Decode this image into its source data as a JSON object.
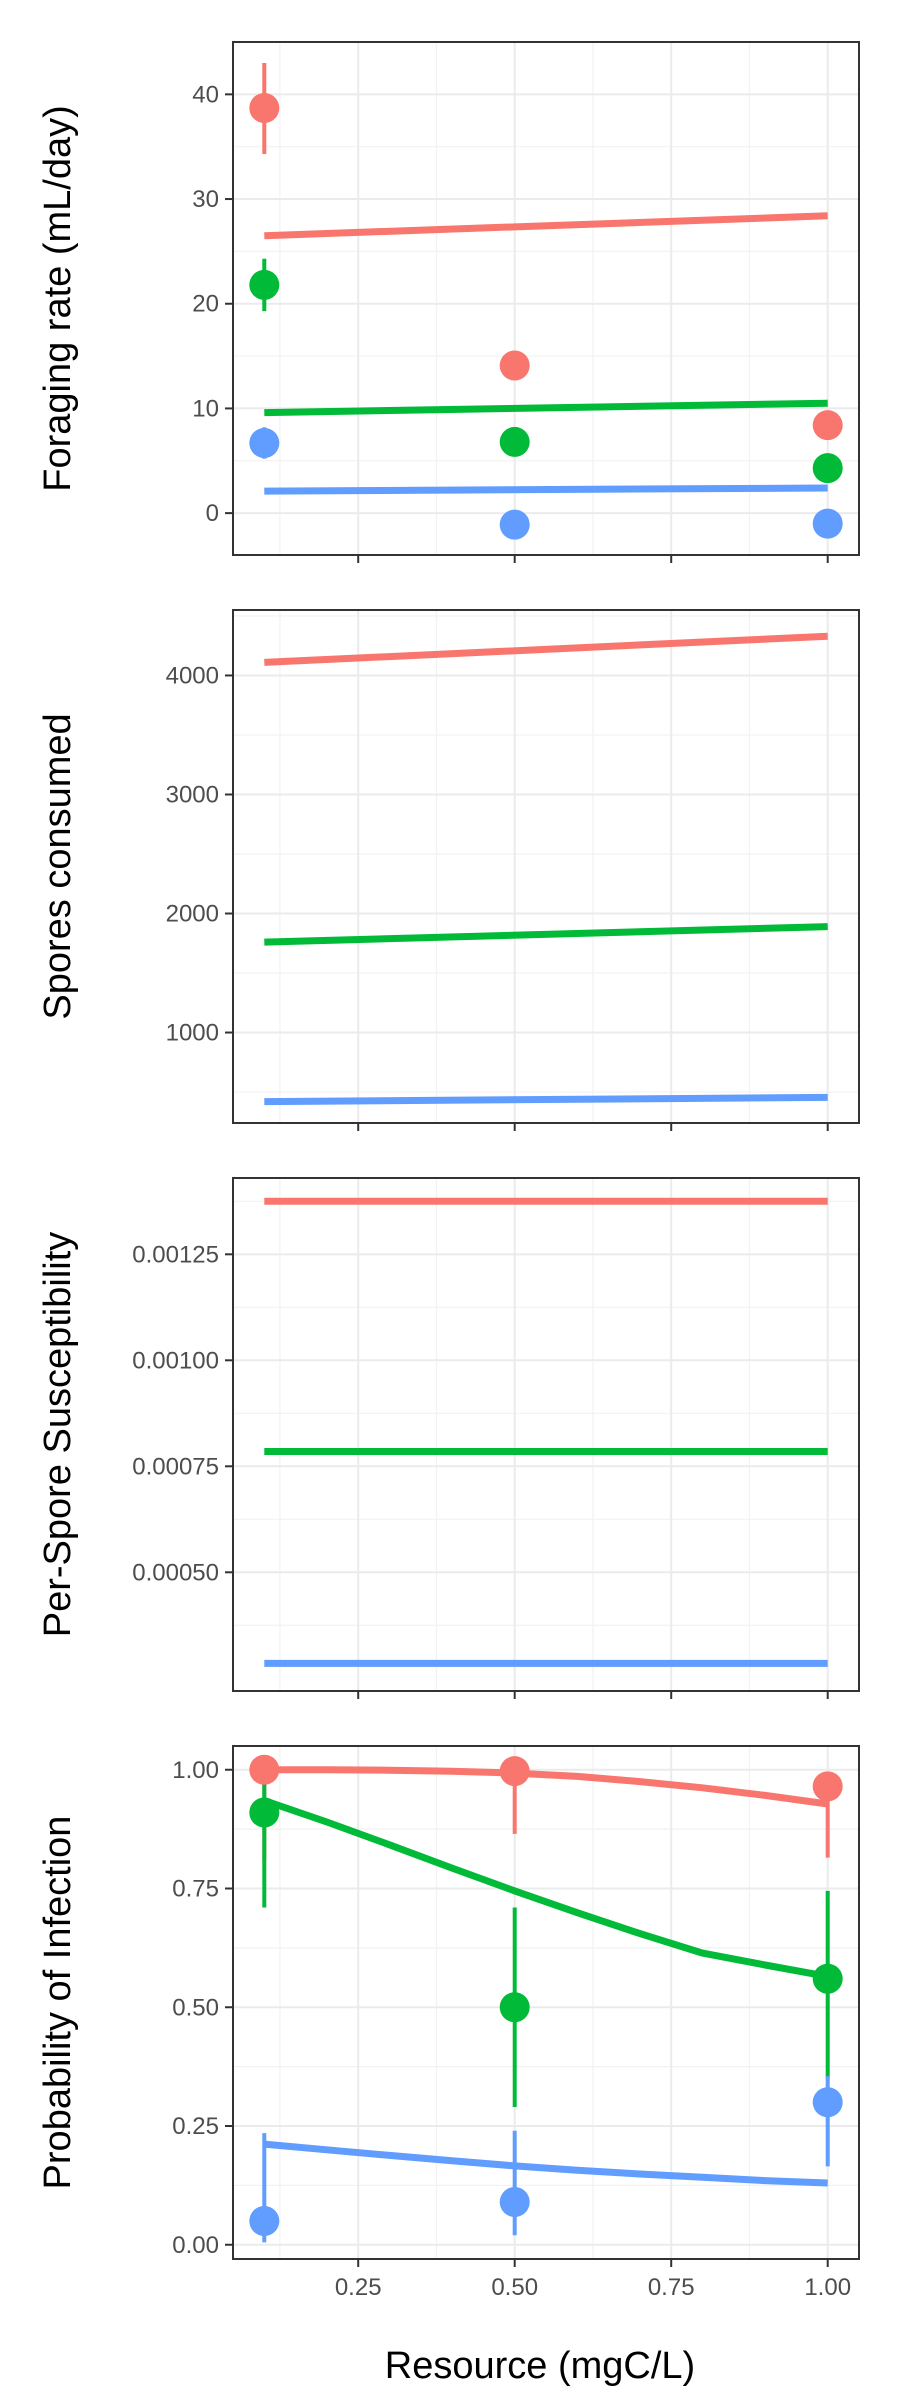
{
  "colors": {
    "red": "#F8766D",
    "green": "#00BA38",
    "blue": "#619CFF"
  },
  "xaxis": {
    "label": "Resource (mgC/L)",
    "ticks": [
      0.25,
      0.5,
      0.75,
      1.0
    ],
    "tick_labels": [
      "0.25",
      "0.50",
      "0.75",
      "1.00"
    ],
    "range": [
      0.05,
      1.05
    ]
  },
  "chart_data": [
    {
      "type": "line",
      "ylabel": "Foraging rate (mL/day)",
      "ylim": [
        -4,
        45
      ],
      "yticks": [
        0,
        10,
        20,
        30,
        40
      ],
      "ytick_labels": [
        "0",
        "10",
        "20",
        "30",
        "40"
      ],
      "grid": true,
      "series": [
        {
          "color": "red",
          "line": {
            "x": [
              0.1,
              1.0
            ],
            "y": [
              26.5,
              28.4
            ]
          },
          "points": [
            {
              "x": 0.1,
              "y": 38.7,
              "lo": 34.3,
              "hi": 43.0
            },
            {
              "x": 0.5,
              "y": 14.1
            },
            {
              "x": 1.0,
              "y": 8.4
            }
          ]
        },
        {
          "color": "green",
          "line": {
            "x": [
              0.1,
              1.0
            ],
            "y": [
              9.6,
              10.5
            ]
          },
          "points": [
            {
              "x": 0.1,
              "y": 21.8,
              "lo": 19.3,
              "hi": 24.3
            },
            {
              "x": 0.5,
              "y": 6.8
            },
            {
              "x": 1.0,
              "y": 4.3
            }
          ]
        },
        {
          "color": "blue",
          "line": {
            "x": [
              0.1,
              1.0
            ],
            "y": [
              2.1,
              2.4
            ]
          },
          "points": [
            {
              "x": 0.1,
              "y": 6.7,
              "lo": 5.2,
              "hi": 8.2
            },
            {
              "x": 0.5,
              "y": -1.1
            },
            {
              "x": 1.0,
              "y": -1.0
            }
          ]
        }
      ]
    },
    {
      "type": "line",
      "ylabel": "Spores consumed",
      "ylim": [
        240,
        4550
      ],
      "yticks": [
        1000,
        2000,
        3000,
        4000
      ],
      "ytick_labels": [
        "1000",
        "2000",
        "3000",
        "4000"
      ],
      "grid": true,
      "series": [
        {
          "color": "red",
          "line": {
            "x": [
              0.1,
              1.0
            ],
            "y": [
              4110,
              4330
            ]
          },
          "points": []
        },
        {
          "color": "green",
          "line": {
            "x": [
              0.1,
              1.0
            ],
            "y": [
              1760,
              1890
            ]
          },
          "points": []
        },
        {
          "color": "blue",
          "line": {
            "x": [
              0.1,
              1.0
            ],
            "y": [
              420,
              455
            ]
          },
          "points": []
        }
      ]
    },
    {
      "type": "line",
      "ylabel": "Per-Spore Susceptibility",
      "ylim": [
        0.00022,
        0.00143
      ],
      "yticks": [
        0.0005,
        0.00075,
        0.001,
        0.00125
      ],
      "ytick_labels": [
        "0.00050",
        "0.00075",
        "0.00100",
        "0.00125"
      ],
      "grid": true,
      "series": [
        {
          "color": "red",
          "line": {
            "x": [
              0.1,
              1.0
            ],
            "y": [
              0.001375,
              0.001375
            ]
          },
          "points": []
        },
        {
          "color": "green",
          "line": {
            "x": [
              0.1,
              1.0
            ],
            "y": [
              0.000785,
              0.000785
            ]
          },
          "points": []
        },
        {
          "color": "blue",
          "line": {
            "x": [
              0.1,
              1.0
            ],
            "y": [
              0.000285,
              0.000285
            ]
          },
          "points": []
        }
      ]
    },
    {
      "type": "line",
      "ylabel": "Probability of Infection",
      "ylim": [
        -0.03,
        1.05
      ],
      "yticks": [
        0.0,
        0.25,
        0.5,
        0.75,
        1.0
      ],
      "ytick_labels": [
        "0.00",
        "0.25",
        "0.50",
        "0.75",
        "1.00"
      ],
      "grid": true,
      "series": [
        {
          "color": "red",
          "line": {
            "x": [
              0.1,
              0.2,
              0.3,
              0.4,
              0.5,
              0.6,
              0.7,
              0.8,
              0.9,
              1.0
            ],
            "y": [
              1.0,
              1.0,
              0.999,
              0.997,
              0.993,
              0.986,
              0.975,
              0.962,
              0.946,
              0.928
            ]
          },
          "points": [
            {
              "x": 0.1,
              "y": 1.0,
              "lo": 0.81,
              "hi": 1.0
            },
            {
              "x": 0.5,
              "y": 0.997,
              "lo": 0.865,
              "hi": 1.0
            },
            {
              "x": 1.0,
              "y": 0.965,
              "lo": 0.815,
              "hi": 0.995
            }
          ]
        },
        {
          "color": "green",
          "line": {
            "x": [
              0.1,
              0.2,
              0.3,
              0.4,
              0.5,
              0.6,
              0.7,
              0.8,
              0.9,
              1.0
            ],
            "y": [
              0.935,
              0.89,
              0.842,
              0.793,
              0.745,
              0.699,
              0.655,
              0.614,
              0.589,
              0.565
            ]
          },
          "points": [
            {
              "x": 0.1,
              "y": 0.91,
              "lo": 0.71,
              "hi": 1.0
            },
            {
              "x": 0.5,
              "y": 0.5,
              "lo": 0.29,
              "hi": 0.71
            },
            {
              "x": 1.0,
              "y": 0.56,
              "lo": 0.35,
              "hi": 0.745
            }
          ]
        },
        {
          "color": "blue",
          "line": {
            "x": [
              0.1,
              0.2,
              0.3,
              0.4,
              0.5,
              0.6,
              0.7,
              0.8,
              0.9,
              1.0
            ],
            "y": [
              0.212,
              0.2,
              0.188,
              0.177,
              0.166,
              0.157,
              0.149,
              0.142,
              0.135,
              0.13
            ]
          },
          "points": [
            {
              "x": 0.1,
              "y": 0.05,
              "lo": 0.005,
              "hi": 0.235
            },
            {
              "x": 0.5,
              "y": 0.09,
              "lo": 0.02,
              "hi": 0.24
            },
            {
              "x": 1.0,
              "y": 0.3,
              "lo": 0.165,
              "hi": 0.355
            }
          ]
        }
      ]
    }
  ]
}
